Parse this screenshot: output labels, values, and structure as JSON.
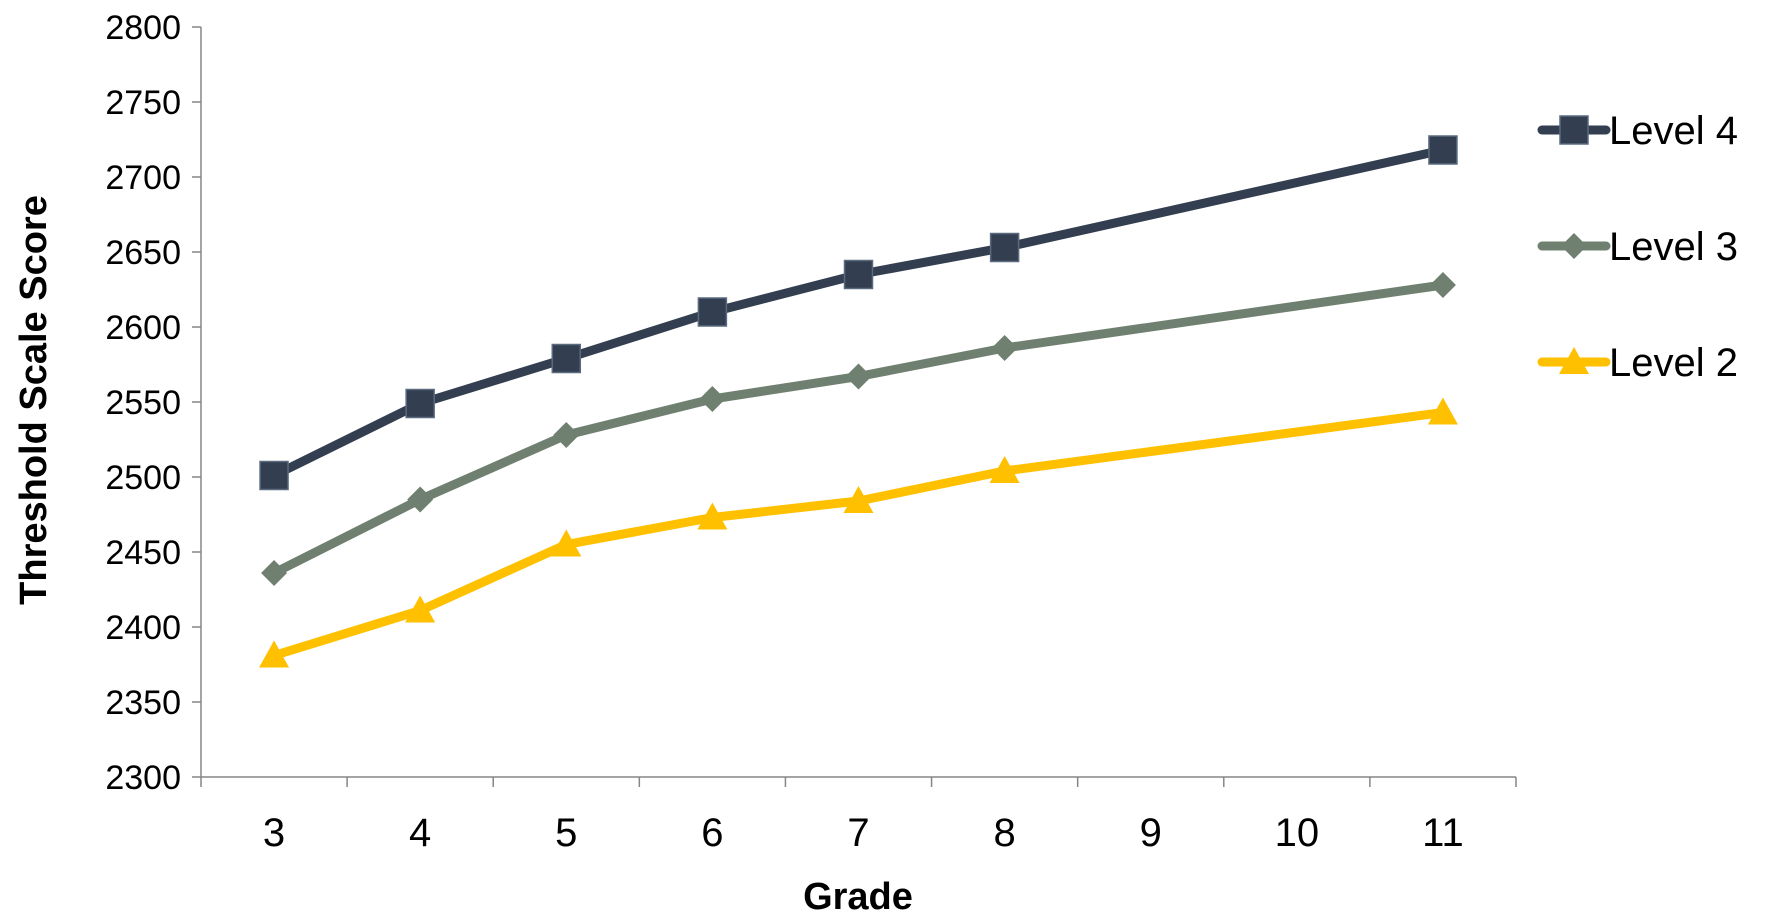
{
  "chart_data": {
    "type": "line",
    "xlabel": "Grade",
    "ylabel": "Threshold Scale Score",
    "ylim": [
      2300,
      2800
    ],
    "y_ticks": [
      2300,
      2350,
      2400,
      2450,
      2500,
      2550,
      2600,
      2650,
      2700,
      2750,
      2800
    ],
    "categories": [
      "3",
      "4",
      "5",
      "6",
      "7",
      "8",
      "9",
      "10",
      "11"
    ],
    "grid": false,
    "legend_position": "right",
    "series": [
      {
        "name": "Level 4",
        "color": "#333f50",
        "marker": "square",
        "values": [
          2501,
          2549,
          2579,
          2610,
          2635,
          2653,
          null,
          null,
          2718
        ]
      },
      {
        "name": "Level 3",
        "color": "#6f8070",
        "marker": "diamond",
        "values": [
          2436,
          2485,
          2528,
          2552,
          2567,
          2586,
          null,
          null,
          2628
        ]
      },
      {
        "name": "Level 2",
        "color": "#ffc000",
        "marker": "triangle",
        "values": [
          2381,
          2411,
          2455,
          2473,
          2484,
          2504,
          null,
          null,
          2543
        ]
      }
    ]
  }
}
